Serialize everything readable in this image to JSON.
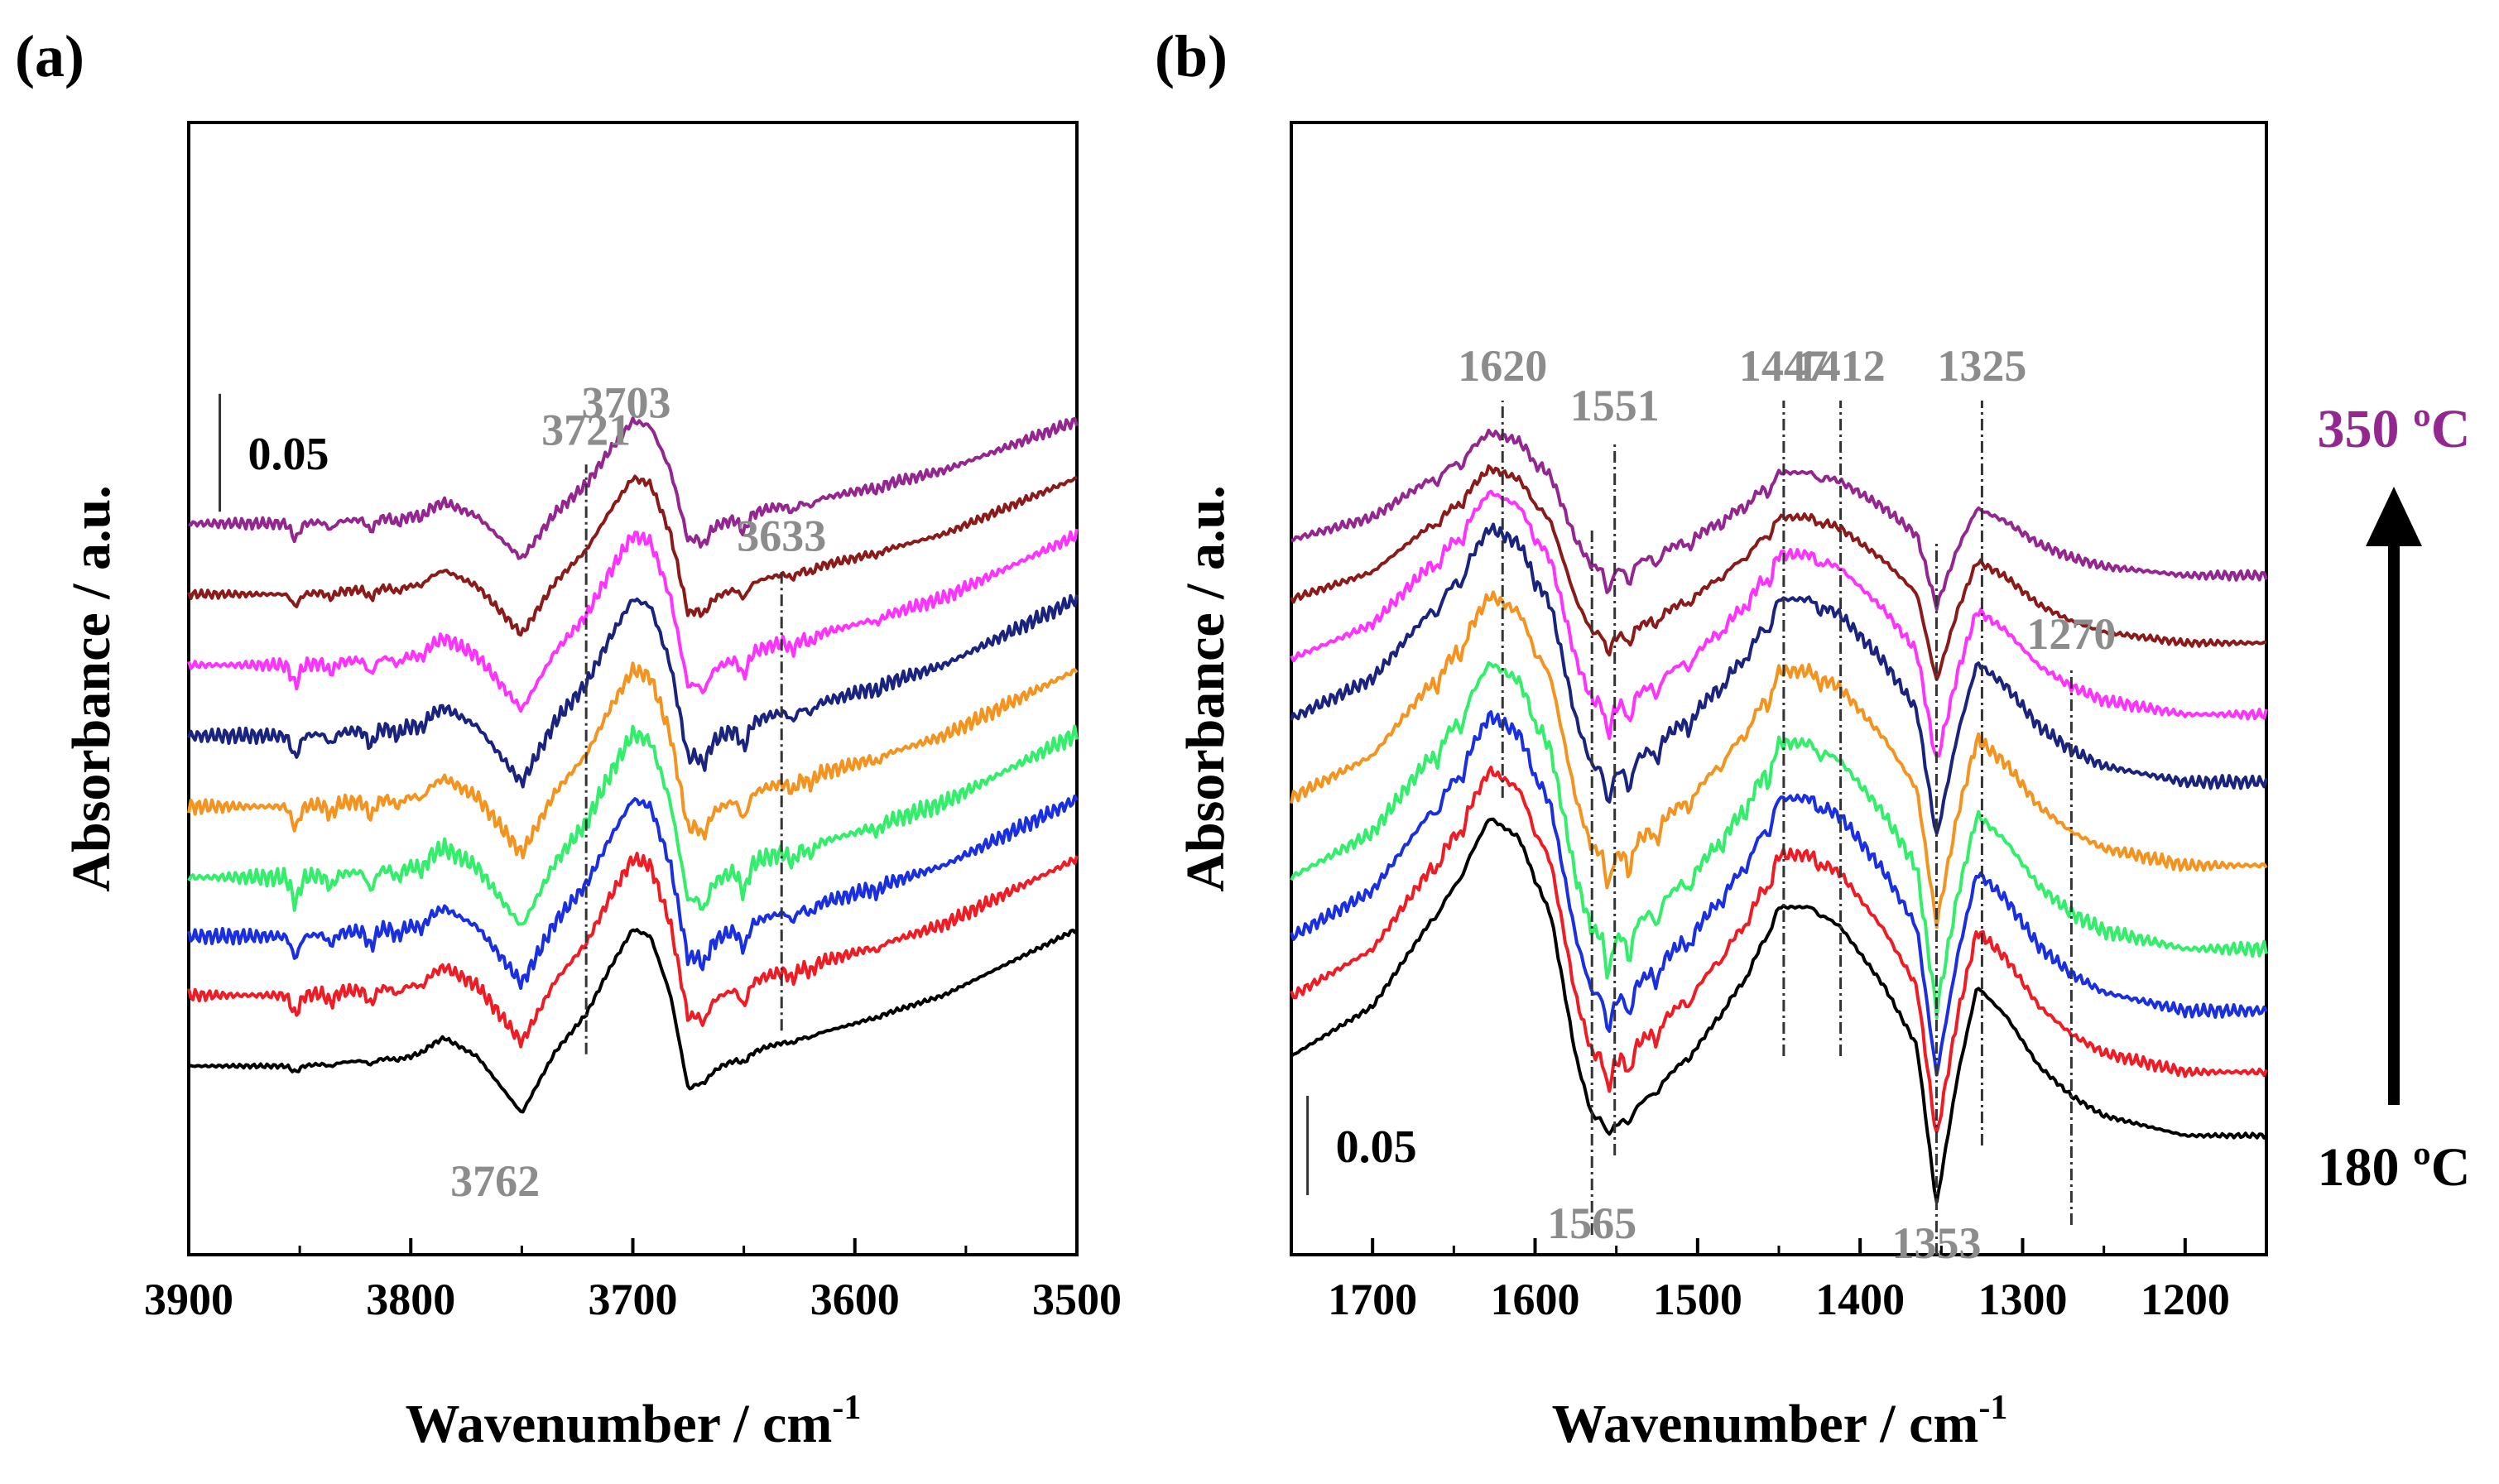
{
  "figure": {
    "panel_labels": [
      "(a)",
      "(b)"
    ],
    "temperature_top": "350 ºC",
    "temperature_bottom": "180 ºC"
  },
  "chart_data": [
    {
      "type": "line",
      "panel": "(a)",
      "title": "",
      "xlabel": "Wavenumber / cm",
      "xlabel_sup": "-1",
      "ylabel": "Absorbance / a.u.",
      "xlim": [
        3900,
        3500
      ],
      "xticks": [
        3900,
        3800,
        3700,
        3600,
        3500
      ],
      "xtick_labels": [
        "3900",
        "3800",
        "3700",
        "3600",
        "3500"
      ],
      "ylim": [
        -0.08,
        0.4
      ],
      "scale_bar": {
        "label": "0.05",
        "value": 0.05,
        "x": 3886,
        "y_bottom": 0.235
      },
      "reference_lines": [
        {
          "x": 3721,
          "label": "3721",
          "label_pos": "top",
          "y_from": 0.005,
          "y_to": 0.255
        },
        {
          "x": 3633,
          "label": "3633",
          "label_pos": "top",
          "y_from": 0.015,
          "y_to": 0.21
        }
      ],
      "peak_labels": [
        {
          "label": "3703",
          "x": 3703,
          "y": 0.275
        },
        {
          "label": "3762",
          "x": 3762,
          "y": -0.055
        }
      ],
      "feature_template": [
        [
          3900,
          0
        ],
        [
          3850,
          0
        ],
        [
          3800,
          0.004
        ],
        [
          3785,
          0.012
        ],
        [
          3770,
          0.004
        ],
        [
          3750,
          -0.02
        ],
        [
          3735,
          0.006
        ],
        [
          3721,
          0.022
        ],
        [
          3710,
          0.042
        ],
        [
          3700,
          0.058
        ],
        [
          3692,
          0.055
        ],
        [
          3683,
          0.03
        ],
        [
          3675,
          -0.01
        ],
        [
          3660,
          0.0
        ],
        [
          3640,
          0.008
        ],
        [
          3600,
          0.018
        ],
        [
          3560,
          0.03
        ],
        [
          3500,
          0.058
        ]
      ],
      "noise_template": [
        [
          3852,
          -0.008
        ],
        [
          3836,
          -0.004
        ],
        [
          3818,
          -0.006
        ],
        [
          3806,
          -0.003
        ],
        [
          3795,
          -0.003
        ],
        [
          3668,
          -0.006
        ],
        [
          3650,
          -0.008
        ],
        [
          3628,
          -0.004
        ],
        [
          3620,
          -0.003
        ],
        [
          3590,
          -0.002
        ]
      ],
      "series": [
        {
          "name": "180 ºC",
          "color": "#000000",
          "offset": 0.0,
          "feature_scale": 1.0,
          "noise": 0.3
        },
        {
          "name": "",
          "color": "#ee1c25",
          "offset": 0.03,
          "feature_scale": 1.0,
          "noise": 1.0
        },
        {
          "name": "",
          "color": "#1a2fe0",
          "offset": 0.055,
          "feature_scale": 1.0,
          "noise": 1.1
        },
        {
          "name": "",
          "color": "#33ee6a",
          "offset": 0.08,
          "feature_scale": 1.05,
          "noise": 1.3
        },
        {
          "name": "",
          "color": "#f39320",
          "offset": 0.11,
          "feature_scale": 1.0,
          "noise": 1.1
        },
        {
          "name": "",
          "color": "#1a237e",
          "offset": 0.14,
          "feature_scale": 1.0,
          "noise": 1.1
        },
        {
          "name": "",
          "color": "#ff33ff",
          "offset": 0.17,
          "feature_scale": 0.95,
          "noise": 1.0
        },
        {
          "name": "",
          "color": "#8b1a1a",
          "offset": 0.2,
          "feature_scale": 0.85,
          "noise": 0.6
        },
        {
          "name": "350 ºC",
          "color": "#93278f",
          "offset": 0.23,
          "feature_scale": 0.75,
          "noise": 0.8
        }
      ]
    },
    {
      "type": "line",
      "panel": "(b)",
      "title": "",
      "xlabel": "Wavenumber / cm",
      "xlabel_sup": "-1",
      "ylabel": "Absorbance / a.u.",
      "xlim": [
        1750,
        1150
      ],
      "xticks": [
        1700,
        1600,
        1500,
        1400,
        1300,
        1200
      ],
      "xtick_labels": [
        "1700",
        "1600",
        "1500",
        "1400",
        "1300",
        "1200"
      ],
      "ylim": [
        -0.1,
        0.47
      ],
      "scale_bar": {
        "label": "0.05",
        "value": 0.05,
        "x": 1740,
        "y_bottom": -0.07
      },
      "reference_lines": [
        {
          "x": 1620,
          "label": "1620",
          "label_pos": "top",
          "y_from": 0.13,
          "y_to": 0.33
        },
        {
          "x": 1551,
          "label": "1551",
          "label_pos": "top",
          "y_from": -0.05,
          "y_to": 0.31
        },
        {
          "x": 1447,
          "label": "1447",
          "label_pos": "top",
          "y_from": 0.0,
          "y_to": 0.33
        },
        {
          "x": 1412,
          "label": "1412",
          "label_pos": "top",
          "y_from": -0.0,
          "y_to": 0.33
        },
        {
          "x": 1325,
          "label": "1325",
          "label_pos": "top",
          "y_from": -0.045,
          "y_to": 0.33
        },
        {
          "x": 1270,
          "label": "1270",
          "label_pos": "top",
          "y_from": -0.085,
          "y_to": 0.195
        },
        {
          "x": 1565,
          "label": "1565",
          "label_pos": "bottom",
          "y_from": -0.09,
          "y_to": 0.265
        },
        {
          "x": 1353,
          "label": "1353",
          "label_pos": "bottom",
          "y_from": -0.1,
          "y_to": 0.26
        }
      ],
      "feature_template": [
        [
          1750,
          0
        ],
        [
          1700,
          0.025
        ],
        [
          1650,
          0.085
        ],
        [
          1628,
          0.12
        ],
        [
          1610,
          0.11
        ],
        [
          1590,
          0.07
        ],
        [
          1575,
          0.0
        ],
        [
          1565,
          -0.03
        ],
        [
          1550,
          -0.035
        ],
        [
          1530,
          -0.02
        ],
        [
          1500,
          0.005
        ],
        [
          1470,
          0.04
        ],
        [
          1450,
          0.075
        ],
        [
          1430,
          0.075
        ],
        [
          1412,
          0.065
        ],
        [
          1385,
          0.035
        ],
        [
          1365,
          0.005
        ],
        [
          1353,
          -0.075
        ],
        [
          1340,
          -0.01
        ],
        [
          1328,
          0.035
        ],
        [
          1310,
          0.02
        ],
        [
          1290,
          -0.005
        ],
        [
          1270,
          -0.02
        ],
        [
          1250,
          -0.03
        ],
        [
          1200,
          -0.04
        ],
        [
          1150,
          -0.04
        ]
      ],
      "noise_template": [
        [
          1660,
          -0.006
        ],
        [
          1645,
          -0.007
        ],
        [
          1600,
          -0.004
        ],
        [
          1555,
          -0.015
        ],
        [
          1542,
          -0.012
        ],
        [
          1525,
          -0.008
        ],
        [
          1505,
          -0.006
        ],
        [
          1485,
          -0.004
        ],
        [
          1470,
          -0.003
        ],
        [
          1456,
          -0.008
        ],
        [
          1425,
          -0.004
        ]
      ],
      "series": [
        {
          "name": "180 ºC",
          "color": "#000000",
          "offset": 0.0,
          "feature_scale": 1.0,
          "noise": 0.4
        },
        {
          "name": "",
          "color": "#ee1c25",
          "offset": 0.03,
          "feature_scale": 0.95,
          "noise": 1.0
        },
        {
          "name": "",
          "color": "#1a2fe0",
          "offset": 0.06,
          "feature_scale": 0.93,
          "noise": 1.1
        },
        {
          "name": "",
          "color": "#33ee6a",
          "offset": 0.09,
          "feature_scale": 0.9,
          "noise": 1.3
        },
        {
          "name": "",
          "color": "#f39320",
          "offset": 0.13,
          "feature_scale": 0.85,
          "noise": 1.1
        },
        {
          "name": "",
          "color": "#1a237e",
          "offset": 0.17,
          "feature_scale": 0.8,
          "noise": 1.1
        },
        {
          "name": "",
          "color": "#ff33ff",
          "offset": 0.2,
          "feature_scale": 0.7,
          "noise": 1.0
        },
        {
          "name": "",
          "color": "#8b1a1a",
          "offset": 0.23,
          "feature_scale": 0.55,
          "noise": 0.6
        },
        {
          "name": "350 ºC",
          "color": "#93278f",
          "offset": 0.26,
          "feature_scale": 0.45,
          "noise": 0.8
        }
      ]
    }
  ]
}
